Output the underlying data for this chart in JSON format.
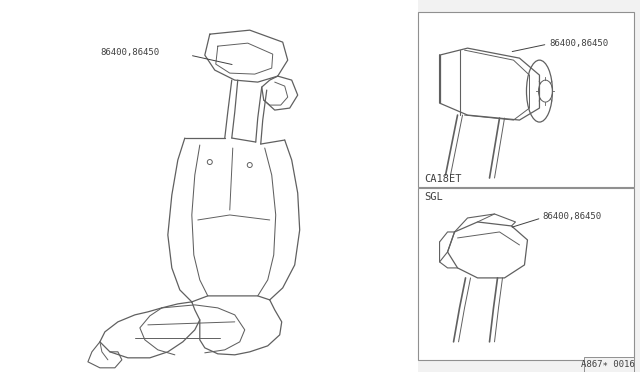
{
  "bg_color": "#f2f2f2",
  "line_color": "#606060",
  "border_color": "#909090",
  "text_color": "#404040",
  "part_number": "86400,86450",
  "label_top": "CA18ET",
  "label_bottom": "SGL",
  "diagram_code": "A867∗ 0016",
  "font_size_label": 7.5,
  "font_size_part": 6.5,
  "font_size_code": 6.5
}
